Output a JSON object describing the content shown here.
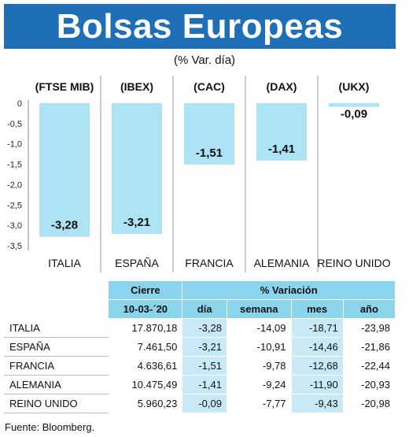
{
  "header": {
    "title": "Bolsas Europeas",
    "subtitle": "(% Var. día)"
  },
  "chart_data": {
    "type": "bar",
    "index_labels": [
      "(FTSE MIB)",
      "(IBEX)",
      "(CAC)",
      "(DAX)",
      "(UKX)"
    ],
    "categories": [
      "ITALIA",
      "ESPAÑA",
      "FRANCIA",
      "ALEMANIA",
      "REINO UNIDO"
    ],
    "values": [
      -3.28,
      -3.21,
      -1.51,
      -1.41,
      -0.09
    ],
    "value_labels": [
      "-3,28",
      "-3,21",
      "-1,51",
      "-1,41",
      "-0,09"
    ],
    "yticks": [
      "0",
      "-0,5",
      "-1,0",
      "-1,5",
      "-2,0",
      "-2,5",
      "-3,0",
      "-3,5"
    ],
    "ylim": [
      -3.5,
      0
    ],
    "bar_color": "#aee3f5",
    "grid": "vertical dividers between categories"
  },
  "table": {
    "header_cierre": "Cierre",
    "header_variacion": "% Variación",
    "sub_date": "10-03-´20",
    "sub_dia": "día",
    "sub_semana": "semana",
    "sub_mes": "mes",
    "sub_ano": "año",
    "rows": [
      {
        "name": "ITALIA",
        "cierre": "17.870,18",
        "dia": "-3,28",
        "semana": "-14,09",
        "mes": "-18,71",
        "ano": "-23,98"
      },
      {
        "name": "ESPAÑA",
        "cierre": "7.461,50",
        "dia": "-3,21",
        "semana": "-10,91",
        "mes": "-14,46",
        "ano": "-21,86"
      },
      {
        "name": "FRANCIA",
        "cierre": "4.636,61",
        "dia": "-1,51",
        "semana": "-9,78",
        "mes": "-12,68",
        "ano": "-22,44"
      },
      {
        "name": "ALEMANIA",
        "cierre": "10.475,49",
        "dia": "-1,41",
        "semana": "-9,24",
        "mes": "-11,90",
        "ano": "-20,93"
      },
      {
        "name": "REINO UNIDO",
        "cierre": "5.960,23",
        "dia": "-0,09",
        "semana": "-7,77",
        "mes": "-9,43",
        "ano": "-20,98"
      }
    ]
  },
  "source": "Fuente: Bloomberg.",
  "colors": {
    "title_bg": "#1f6fb6",
    "header_bg": "#8ad5ec",
    "cell_highlight": "#c7eaf6"
  }
}
